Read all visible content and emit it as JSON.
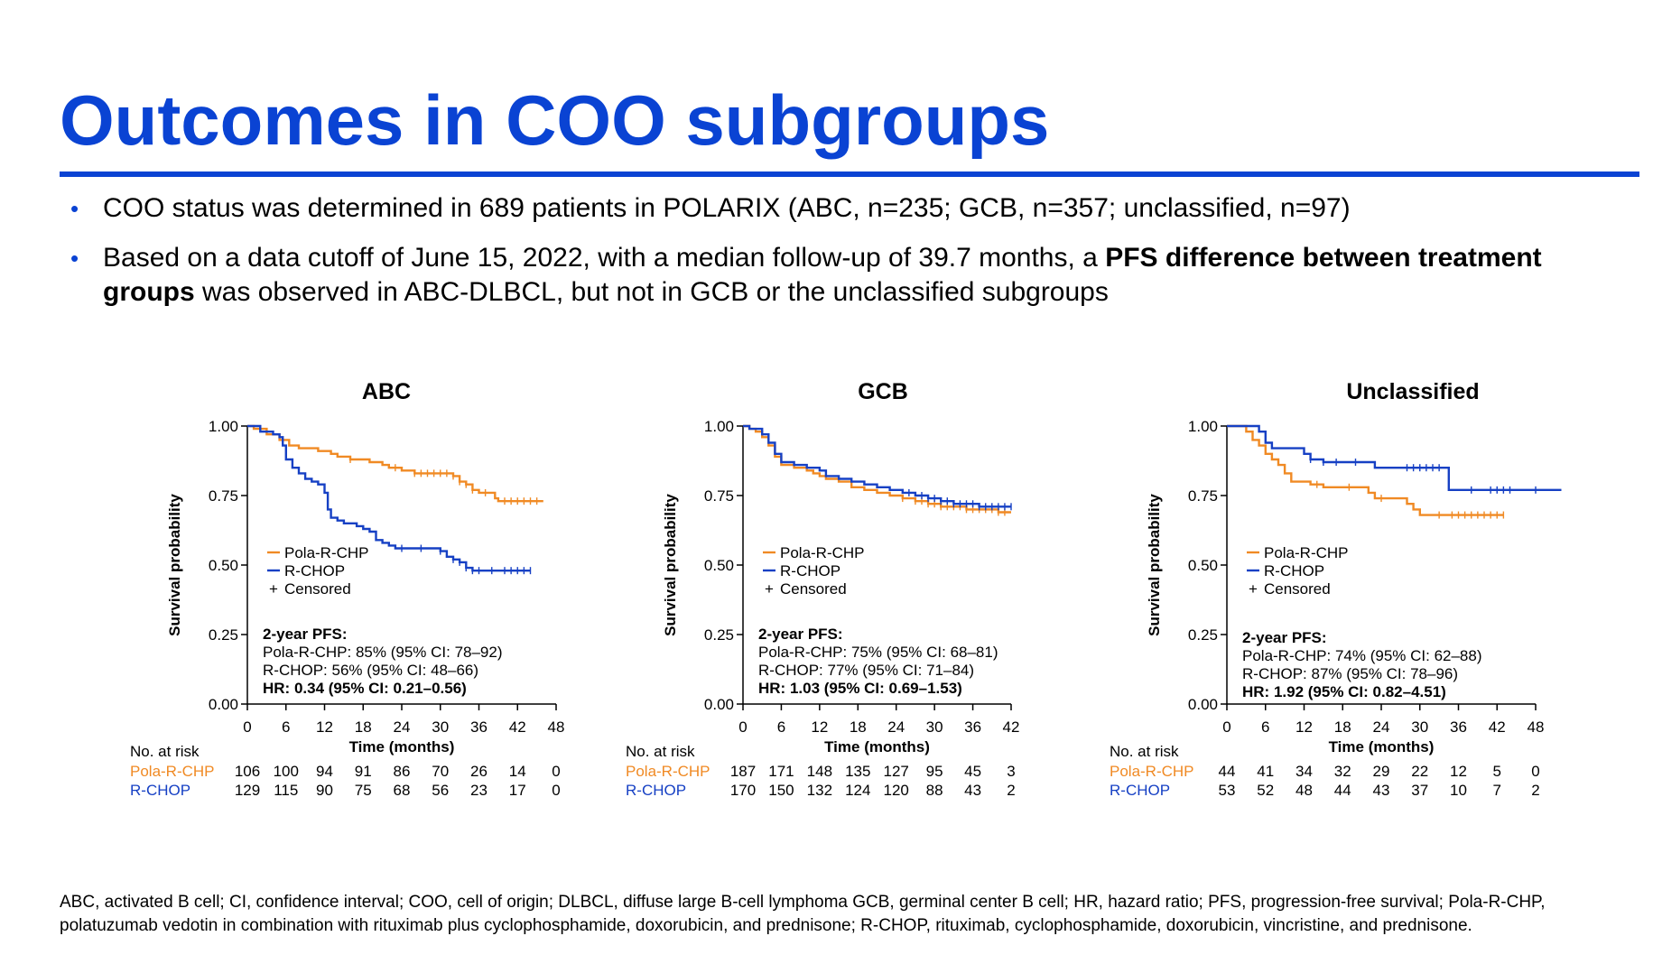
{
  "page": {
    "title": "Outcomes in COO subgroups",
    "bullets": [
      {
        "segments": [
          {
            "text": "COO status was determined in 689 patients in POLARIX (ABC, n=235; GCB, n=357; unclassified, n=97)",
            "bold": false
          }
        ]
      },
      {
        "segments": [
          {
            "text": "Based on a data cutoff of June 15, 2022, with a median follow-up of 39.7 months, a ",
            "bold": false
          },
          {
            "text": "PFS difference between treatment groups",
            "bold": true
          },
          {
            "text": " was observed in ABC-DLBCL, but not in GCB or the unclassified subgroups",
            "bold": false
          }
        ]
      }
    ],
    "bullet_symbol": "•",
    "footnote": "ABC, activated B cell; CI, confidence interval; COO, cell of origin; DLBCL, diffuse large B-cell lymphoma GCB, germinal center B cell; HR, hazard ratio; PFS, progression-free survival; Pola-R-CHP, polatuzumab vedotin in combination with rituximab plus cyclophosphamide, doxorubicin, and prednisone; R-CHOP, rituximab, cyclophosphamide, doxorubicin, vincristine, and prednisone.",
    "colors": {
      "title": "#0a43d3",
      "pola": "#f08a24",
      "rchop": "#1640c4"
    }
  },
  "chart_data": [
    {
      "type": "line",
      "subtype": "kaplan-meier",
      "title": "ABC",
      "xlabel": "Time (months)",
      "ylabel": "Survival probability",
      "xlim": [
        0,
        48
      ],
      "ylim": [
        0,
        1
      ],
      "xticks": [
        0,
        6,
        12,
        18,
        24,
        30,
        36,
        42,
        48
      ],
      "yticks": [
        "0.00",
        "0.25",
        "0.50",
        "0.75",
        "1.00"
      ],
      "legend": [
        "Pola-R-CHP",
        "R-CHOP",
        "Censored"
      ],
      "censor_symbol": "+",
      "legend_position": "center-left",
      "series": [
        {
          "name": "Pola-R-CHP",
          "points": [
            [
              0,
              1.0
            ],
            [
              1,
              0.99
            ],
            [
              3,
              0.97
            ],
            [
              5,
              0.95
            ],
            [
              6.5,
              0.93
            ],
            [
              8,
              0.92
            ],
            [
              10,
              0.92
            ],
            [
              11,
              0.91
            ],
            [
              13,
              0.9
            ],
            [
              14,
              0.89
            ],
            [
              16,
              0.88
            ],
            [
              18,
              0.88
            ],
            [
              19,
              0.87
            ],
            [
              21,
              0.86
            ],
            [
              22,
              0.85
            ],
            [
              24,
              0.84
            ],
            [
              25,
              0.84
            ],
            [
              26,
              0.83
            ],
            [
              28,
              0.83
            ],
            [
              31,
              0.83
            ],
            [
              32,
              0.82
            ],
            [
              33,
              0.8
            ],
            [
              34,
              0.79
            ],
            [
              35,
              0.77
            ],
            [
              36,
              0.76
            ],
            [
              38,
              0.76
            ],
            [
              38.5,
              0.74
            ],
            [
              39,
              0.73
            ],
            [
              42,
              0.73
            ],
            [
              46,
              0.73
            ]
          ],
          "censor_x": [
            16,
            23,
            26,
            27,
            28,
            29,
            30,
            31,
            32,
            33,
            34,
            35,
            37,
            40,
            41,
            42,
            43,
            44,
            45
          ]
        },
        {
          "name": "R-CHOP",
          "points": [
            [
              0,
              1.0
            ],
            [
              2,
              0.98
            ],
            [
              4,
              0.97
            ],
            [
              5,
              0.96
            ],
            [
              5.5,
              0.93
            ],
            [
              6,
              0.88
            ],
            [
              7,
              0.85
            ],
            [
              8,
              0.83
            ],
            [
              9,
              0.81
            ],
            [
              10,
              0.8
            ],
            [
              11,
              0.79
            ],
            [
              12,
              0.76
            ],
            [
              12.5,
              0.7
            ],
            [
              13,
              0.67
            ],
            [
              14,
              0.66
            ],
            [
              15,
              0.65
            ],
            [
              17,
              0.64
            ],
            [
              18,
              0.63
            ],
            [
              19,
              0.62
            ],
            [
              20,
              0.59
            ],
            [
              21,
              0.58
            ],
            [
              22,
              0.57
            ],
            [
              23,
              0.56
            ],
            [
              29,
              0.56
            ],
            [
              30,
              0.55
            ],
            [
              31,
              0.53
            ],
            [
              32,
              0.52
            ],
            [
              33,
              0.51
            ],
            [
              34,
              0.49
            ],
            [
              35,
              0.48
            ],
            [
              44,
              0.48
            ]
          ],
          "censor_x": [
            24,
            27,
            30,
            32,
            33,
            34,
            35,
            36,
            38,
            40,
            41,
            42,
            43,
            44
          ]
        }
      ],
      "annotations": {
        "pfs_heading": "2-year PFS:",
        "pfs_pola": "Pola-R-CHP: 85% (95% CI: 78–92)",
        "pfs_rchop": "R-CHOP: 56% (95% CI: 48–66)",
        "hr": "HR: 0.34 (95% CI: 0.21–0.56)"
      },
      "risk_table": {
        "header": "No. at risk",
        "rows": [
          {
            "name": "Pola-R-CHP",
            "values": [
              "106",
              "100",
              "94",
              "91",
              "86",
              "70",
              "26",
              "14",
              "0"
            ]
          },
          {
            "name": "R-CHOP",
            "values": [
              "129",
              "115",
              "90",
              "75",
              "68",
              "56",
              "23",
              "17",
              "0"
            ]
          }
        ]
      }
    },
    {
      "type": "line",
      "subtype": "kaplan-meier",
      "title": "GCB",
      "xlabel": "Time (months)",
      "ylabel": "Survival probability",
      "xlim": [
        0,
        42
      ],
      "ylim": [
        0,
        1
      ],
      "xticks": [
        0,
        6,
        12,
        18,
        24,
        30,
        36,
        42
      ],
      "yticks": [
        "0.00",
        "0.25",
        "0.50",
        "0.75",
        "1.00"
      ],
      "legend": [
        "Pola-R-CHP",
        "R-CHOP",
        "Censored"
      ],
      "censor_symbol": "+",
      "legend_position": "center-left",
      "series": [
        {
          "name": "Pola-R-CHP",
          "points": [
            [
              0,
              1.0
            ],
            [
              1,
              0.99
            ],
            [
              2,
              0.98
            ],
            [
              3,
              0.96
            ],
            [
              4,
              0.93
            ],
            [
              5,
              0.89
            ],
            [
              6,
              0.86
            ],
            [
              8,
              0.85
            ],
            [
              10,
              0.84
            ],
            [
              11,
              0.83
            ],
            [
              12,
              0.82
            ],
            [
              13,
              0.81
            ],
            [
              15,
              0.8
            ],
            [
              17,
              0.78
            ],
            [
              19,
              0.77
            ],
            [
              21,
              0.76
            ],
            [
              23,
              0.75
            ],
            [
              25,
              0.74
            ],
            [
              27,
              0.73
            ],
            [
              29,
              0.72
            ],
            [
              31,
              0.71
            ],
            [
              33,
              0.71
            ],
            [
              35,
              0.7
            ],
            [
              37,
              0.7
            ],
            [
              39,
              0.7
            ],
            [
              40,
              0.69
            ],
            [
              42,
              0.69
            ]
          ],
          "censor_x": [
            25,
            27,
            28,
            29,
            30,
            31,
            32,
            33,
            34,
            35,
            36,
            37,
            38,
            39,
            40,
            41
          ]
        },
        {
          "name": "R-CHOP",
          "points": [
            [
              0,
              1.0
            ],
            [
              1,
              0.99
            ],
            [
              2,
              0.99
            ],
            [
              3,
              0.97
            ],
            [
              4,
              0.94
            ],
            [
              5,
              0.9
            ],
            [
              6,
              0.87
            ],
            [
              8,
              0.86
            ],
            [
              10,
              0.85
            ],
            [
              12,
              0.84
            ],
            [
              13,
              0.82
            ],
            [
              15,
              0.81
            ],
            [
              17,
              0.8
            ],
            [
              19,
              0.79
            ],
            [
              21,
              0.78
            ],
            [
              23,
              0.77
            ],
            [
              25,
              0.76
            ],
            [
              27,
              0.75
            ],
            [
              29,
              0.74
            ],
            [
              31,
              0.73
            ],
            [
              33,
              0.72
            ],
            [
              35,
              0.72
            ],
            [
              37,
              0.71
            ],
            [
              39,
              0.71
            ],
            [
              41,
              0.71
            ],
            [
              42,
              0.71
            ]
          ],
          "censor_x": [
            26,
            28,
            29,
            30,
            31,
            32,
            33,
            34,
            35,
            36,
            37,
            38,
            39,
            40,
            41,
            42
          ]
        }
      ],
      "annotations": {
        "pfs_heading": "2-year PFS:",
        "pfs_pola": "Pola-R-CHP: 75% (95% CI: 68–81)",
        "pfs_rchop": "R-CHOP: 77% (95% CI: 71–84)",
        "hr": "HR: 1.03 (95% CI: 0.69–1.53)"
      },
      "risk_table": {
        "header": "No. at risk",
        "rows": [
          {
            "name": "Pola-R-CHP",
            "values": [
              "187",
              "171",
              "148",
              "135",
              "127",
              "95",
              "45",
              "3"
            ]
          },
          {
            "name": "R-CHOP",
            "values": [
              "170",
              "150",
              "132",
              "124",
              "120",
              "88",
              "43",
              "2"
            ]
          }
        ]
      }
    },
    {
      "type": "line",
      "subtype": "kaplan-meier",
      "title": "Unclassified",
      "xlabel": "Time (months)",
      "ylabel": "Survival probability",
      "xlim": [
        0,
        48
      ],
      "ylim": [
        0,
        1
      ],
      "xticks": [
        0,
        6,
        12,
        18,
        24,
        30,
        36,
        42,
        48
      ],
      "yticks": [
        "0.00",
        "0.25",
        "0.50",
        "0.75",
        "1.00"
      ],
      "legend": [
        "Pola-R-CHP",
        "R-CHOP",
        "Censored"
      ],
      "censor_symbol": "+",
      "legend_position": "center-left",
      "series": [
        {
          "name": "Pola-R-CHP",
          "points": [
            [
              0,
              1.0
            ],
            [
              2,
              1.0
            ],
            [
              3,
              0.98
            ],
            [
              4,
              0.95
            ],
            [
              5,
              0.93
            ],
            [
              6,
              0.9
            ],
            [
              7,
              0.88
            ],
            [
              8,
              0.86
            ],
            [
              9,
              0.83
            ],
            [
              10,
              0.8
            ],
            [
              12,
              0.8
            ],
            [
              13,
              0.79
            ],
            [
              15,
              0.78
            ],
            [
              17,
              0.78
            ],
            [
              20,
              0.78
            ],
            [
              22,
              0.76
            ],
            [
              23,
              0.74
            ],
            [
              26,
              0.74
            ],
            [
              28,
              0.72
            ],
            [
              29,
              0.7
            ],
            [
              30,
              0.68
            ],
            [
              33,
              0.68
            ],
            [
              43,
              0.68
            ]
          ],
          "censor_x": [
            14,
            19,
            24,
            33,
            35,
            36,
            37,
            38,
            39,
            40,
            41,
            42,
            43
          ]
        },
        {
          "name": "R-CHOP",
          "points": [
            [
              0,
              1.0
            ],
            [
              4,
              1.0
            ],
            [
              5,
              0.98
            ],
            [
              6,
              0.94
            ],
            [
              7,
              0.92
            ],
            [
              11,
              0.92
            ],
            [
              12,
              0.9
            ],
            [
              13,
              0.88
            ],
            [
              15,
              0.87
            ],
            [
              18,
              0.87
            ],
            [
              22,
              0.87
            ],
            [
              23,
              0.85
            ],
            [
              30,
              0.85
            ],
            [
              34,
              0.85
            ],
            [
              34.5,
              0.77
            ],
            [
              38,
              0.77
            ],
            [
              52,
              0.77
            ]
          ],
          "censor_x": [
            13,
            15,
            17,
            20,
            28,
            29,
            30,
            31,
            32,
            33,
            38,
            41,
            42,
            43,
            44,
            48
          ]
        }
      ],
      "annotations": {
        "pfs_heading": "2-year PFS:",
        "pfs_pola": "Pola-R-CHP: 74% (95% CI: 62–88)",
        "pfs_rchop": "R-CHOP: 87% (95% CI: 78–96)",
        "hr": "HR: 1.92 (95% CI: 0.82–4.51)"
      },
      "risk_table": {
        "header": "No. at risk",
        "rows": [
          {
            "name": "Pola-R-CHP",
            "values": [
              "44",
              "41",
              "34",
              "32",
              "29",
              "22",
              "12",
              "5",
              "0"
            ]
          },
          {
            "name": "R-CHOP",
            "values": [
              "53",
              "52",
              "48",
              "44",
              "43",
              "37",
              "10",
              "7",
              "2"
            ]
          }
        ]
      }
    }
  ]
}
